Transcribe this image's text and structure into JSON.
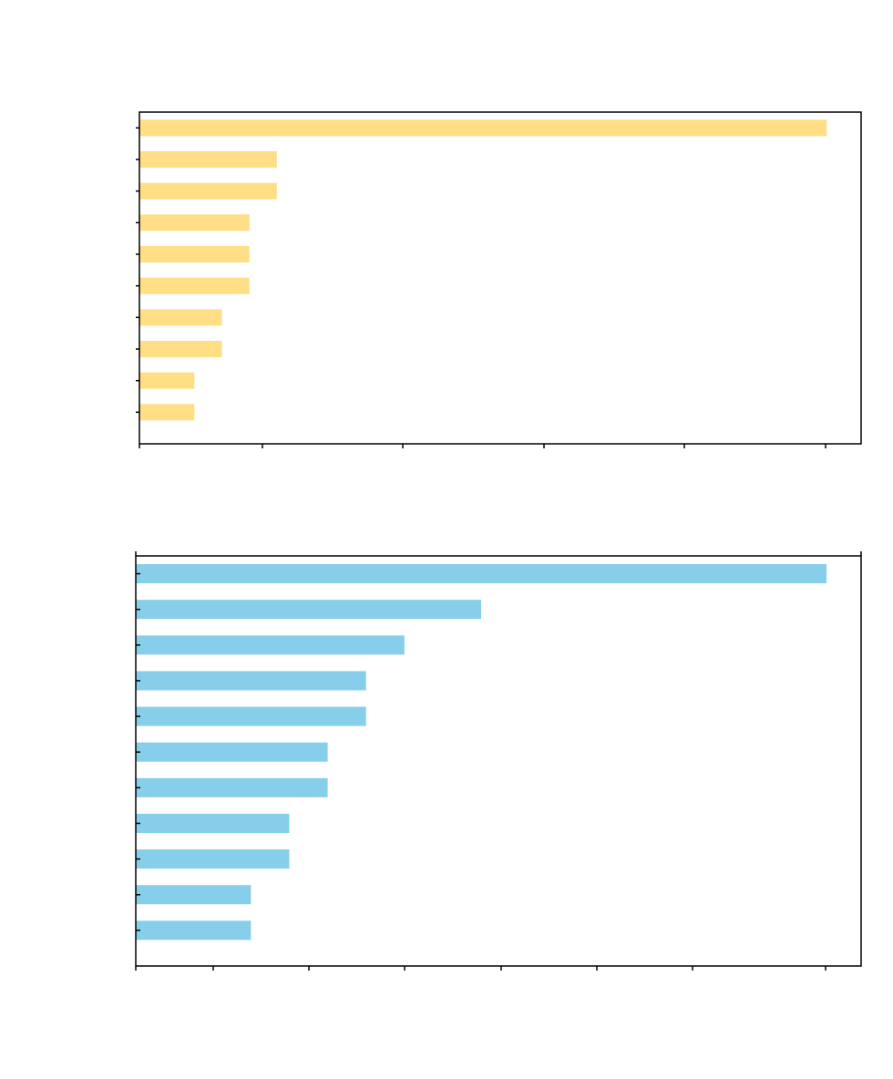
{
  "chart_data": [
    {
      "type": "bar",
      "orientation": "horizontal",
      "color": "#FFDE85",
      "title": "",
      "xlabel": "",
      "ylabel": "",
      "grid": false,
      "values": [
        25,
        5,
        5,
        4,
        4,
        4,
        3,
        3,
        2,
        2
      ],
      "xlim": [
        0,
        26.25
      ]
    },
    {
      "type": "bar",
      "orientation": "horizontal",
      "color": "#87CEEB",
      "title": "",
      "xlabel": "",
      "ylabel": "",
      "grid": false,
      "values": [
        18,
        9,
        7,
        6,
        6,
        5,
        5,
        4,
        4,
        3,
        3
      ],
      "xlim": [
        0,
        18.9
      ]
    }
  ]
}
